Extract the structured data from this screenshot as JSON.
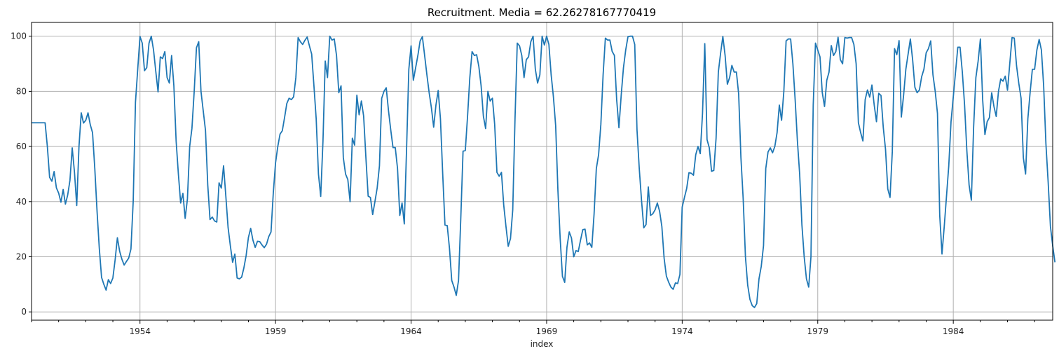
{
  "chart_data": {
    "type": "line",
    "title": "Recruitment. Media = 62.26278167770419",
    "xlabel": "index",
    "ylabel": "",
    "x_start": "1950-01",
    "x_frequency": "monthly",
    "xlim": [
      "1950-01",
      "1987-09"
    ],
    "ylim": [
      -3,
      105
    ],
    "x_ticks": [
      "1954",
      "1959",
      "1964",
      "1969",
      "1974",
      "1979",
      "1984"
    ],
    "y_ticks": [
      0,
      20,
      40,
      60,
      80,
      100
    ],
    "grid": true,
    "series": [
      {
        "color": "#1f77b4",
        "values": [
          68.6,
          68.6,
          68.6,
          68.6,
          68.6,
          68.6,
          68.6,
          60.0,
          48.8,
          47.4,
          50.9,
          45.0,
          43.1,
          39.8,
          44.4,
          39.1,
          42.4,
          47.7,
          59.5,
          50.7,
          38.6,
          60.0,
          72.2,
          68.5,
          69.5,
          72.2,
          67.9,
          65.0,
          52.0,
          36.5,
          23.0,
          12.5,
          10.0,
          7.9,
          11.7,
          10.3,
          12.3,
          18.9,
          26.9,
          22.0,
          19.1,
          17.0,
          18.3,
          19.5,
          22.8,
          40.1,
          76.0,
          88.0,
          99.9,
          97.5,
          87.5,
          88.6,
          97.5,
          100.0,
          95.0,
          87.2,
          79.8,
          92.5,
          91.9,
          94.4,
          85.0,
          83.0,
          93.0,
          82.0,
          62.0,
          50.0,
          39.5,
          43.0,
          33.9,
          41.0,
          60.0,
          66.6,
          80.0,
          95.8,
          98.0,
          80.0,
          72.9,
          65.8,
          46.0,
          33.5,
          34.4,
          33.0,
          32.6,
          46.8,
          44.9,
          53.0,
          42.0,
          30.6,
          24.0,
          18.0,
          21.0,
          12.3,
          12.0,
          12.6,
          16.0,
          20.5,
          27.0,
          30.3,
          26.0,
          23.4,
          25.6,
          25.5,
          24.3,
          23.3,
          24.5,
          27.3,
          29.0,
          43.0,
          54.0,
          60.0,
          64.5,
          65.7,
          70.5,
          75.6,
          77.5,
          77.0,
          78.0,
          85.0,
          99.5,
          98.0,
          97.0,
          98.5,
          99.7,
          96.5,
          93.5,
          82.0,
          70.0,
          50.0,
          41.9,
          62.0,
          91.0,
          85.0,
          100.0,
          98.6,
          99.0,
          93.0,
          79.5,
          82.0,
          56.0,
          50.0,
          48.0,
          40.0,
          63.0,
          60.5,
          78.6,
          71.5,
          76.5,
          71.0,
          56.0,
          42.0,
          41.5,
          35.3,
          40.0,
          45.0,
          53.0,
          77.5,
          80.0,
          81.3,
          73.0,
          66.0,
          59.6,
          59.6,
          52.0,
          35.0,
          39.5,
          31.9,
          59.0,
          88.0,
          96.5,
          84.0,
          88.5,
          93.0,
          98.3,
          99.8,
          93.0,
          86.0,
          79.5,
          74.0,
          67.0,
          75.0,
          80.3,
          70.0,
          50.0,
          31.5,
          31.3,
          23.0,
          11.4,
          9.0,
          6.0,
          11.4,
          34.0,
          58.3,
          58.5,
          71.0,
          85.0,
          94.4,
          93.0,
          93.3,
          89.0,
          82.0,
          71.0,
          66.5,
          80.0,
          76.5,
          77.5,
          68.0,
          50.6,
          49.2,
          50.6,
          38.8,
          31.0,
          23.8,
          26.6,
          37.0,
          70.0,
          97.5,
          96.5,
          93.0,
          85.0,
          91.5,
          92.5,
          98.0,
          100.0,
          88.0,
          83.0,
          86.0,
          100.0,
          96.8,
          100.0,
          97.0,
          86.0,
          78.0,
          67.5,
          44.0,
          26.5,
          12.9,
          10.7,
          23.5,
          29.0,
          26.8,
          20.0,
          22.2,
          21.9,
          26.0,
          29.8,
          30.0,
          24.3,
          25.0,
          23.4,
          35.5,
          52.0,
          57.0,
          68.0,
          86.0,
          99.3,
          98.6,
          98.6,
          94.5,
          93.0,
          77.0,
          66.8,
          78.5,
          88.5,
          95.0,
          99.8,
          100.0,
          100.0,
          97.0,
          66.0,
          52.0,
          40.5,
          30.5,
          31.7,
          45.3,
          35.0,
          35.6,
          37.0,
          39.5,
          36.5,
          31.0,
          19.5,
          13.0,
          10.8,
          9.0,
          8.2,
          10.5,
          10.3,
          13.6,
          38.0,
          41.5,
          44.8,
          50.5,
          50.3,
          49.6,
          57.0,
          60.0,
          57.4,
          72.0,
          97.3,
          62.5,
          59.5,
          51.0,
          51.3,
          63.0,
          87.0,
          93.8,
          99.9,
          93.0,
          82.6,
          85.0,
          89.4,
          87.0,
          87.0,
          79.0,
          56.0,
          41.0,
          20.0,
          9.7,
          4.5,
          2.3,
          1.6,
          3.0,
          12.0,
          16.5,
          24.0,
          52.0,
          58.0,
          59.5,
          57.7,
          60.0,
          65.0,
          75.0,
          69.5,
          80.0,
          98.3,
          99.0,
          99.0,
          90.0,
          77.0,
          62.0,
          50.0,
          31.5,
          20.0,
          12.0,
          9.0,
          20.0,
          75.0,
          97.5,
          95.0,
          92.5,
          79.6,
          74.5,
          84.0,
          87.0,
          96.6,
          93.0,
          94.4,
          99.6,
          91.5,
          90.0,
          99.5,
          99.3,
          99.5,
          99.5,
          97.0,
          90.0,
          68.6,
          65.0,
          62.0,
          77.0,
          80.5,
          77.9,
          82.3,
          75.0,
          69.0,
          79.3,
          78.5,
          67.0,
          59.0,
          44.6,
          41.5,
          58.0,
          95.5,
          93.3,
          98.4,
          70.7,
          78.5,
          88.0,
          93.5,
          99.0,
          91.5,
          81.5,
          79.5,
          80.5,
          85.3,
          88.0,
          94.0,
          95.5,
          98.3,
          86.0,
          80.0,
          72.0,
          35.0,
          21.0,
          31.0,
          42.0,
          53.0,
          69.0,
          78.0,
          87.0,
          96.0,
          96.0,
          87.0,
          75.0,
          58.5,
          46.0,
          40.5,
          67.0,
          85.0,
          91.0,
          99.0,
          77.0,
          64.3,
          69.0,
          70.5,
          79.5,
          74.5,
          70.9,
          80.0,
          84.5,
          83.7,
          85.5,
          80.4,
          90.0,
          99.5,
          99.3,
          89.3,
          82.9,
          77.5,
          56.0,
          50.0,
          70.0,
          79.5,
          88.0,
          88.0,
          95.0,
          98.8,
          95.0,
          82.0,
          61.0,
          47.0,
          31.0,
          24.0,
          18.0
        ]
      }
    ]
  }
}
